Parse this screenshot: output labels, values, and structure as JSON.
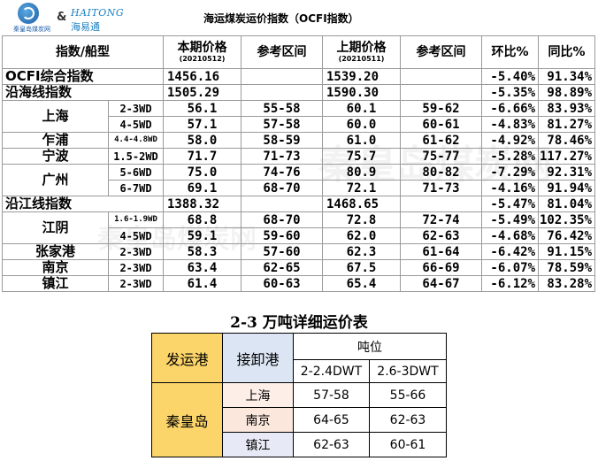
{
  "header": {
    "logo1_caption": "秦皇岛煤炭网",
    "amp": "&",
    "logo2_en": "HAITONG",
    "logo2_cn": "海易通",
    "title": "海运煤炭运价指数（OCFI指数）"
  },
  "main_table": {
    "headers": {
      "type": "指数/船型",
      "cur": "本期价格",
      "cur_date": "(20210512)",
      "ref1": "参考区间",
      "prev": "上期价格",
      "prev_date": "(20210511)",
      "ref2": "参考区间",
      "mom": "环比%",
      "yoy": "同比%"
    },
    "ocfi": {
      "label": "OCFI综合指数",
      "cur": "1456.16",
      "prev": "1539.20",
      "mom": "-5.40%",
      "yoy": "91.34%"
    },
    "coastal": {
      "label": "沿海线指数",
      "cur": "1505.29",
      "prev": "1590.30",
      "mom": "-5.35%",
      "yoy": "98.89%"
    },
    "shanghai": {
      "port": "上海",
      "r1": {
        "ship": "2-3WD",
        "cur": "56.1",
        "ref1": "55-58",
        "prev": "60.1",
        "ref2": "59-62",
        "mom": "-6.66%",
        "yoy": "83.93%"
      },
      "r2": {
        "ship": "4-5WD",
        "cur": "57.1",
        "ref1": "57-58",
        "prev": "60.0",
        "ref2": "60-61",
        "mom": "-4.83%",
        "yoy": "81.27%"
      }
    },
    "zhapu": {
      "port": "乍浦",
      "ship": "4.4-4.8WD",
      "cur": "58.0",
      "ref1": "58-59",
      "prev": "61.0",
      "ref2": "61-62",
      "mom": "-4.92%",
      "yoy": "78.46%"
    },
    "ningbo": {
      "port": "宁波",
      "ship": "1.5-2WD",
      "cur": "71.7",
      "ref1": "71-73",
      "prev": "75.7",
      "ref2": "75-77",
      "mom": "-5.28%",
      "yoy": "117.27%"
    },
    "guangzhou": {
      "port": "广州",
      "r1": {
        "ship": "5-6WD",
        "cur": "75.0",
        "ref1": "74-76",
        "prev": "80.9",
        "ref2": "80-82",
        "mom": "-7.29%",
        "yoy": "92.31%"
      },
      "r2": {
        "ship": "6-7WD",
        "cur": "69.1",
        "ref1": "68-70",
        "prev": "72.1",
        "ref2": "71-73",
        "mom": "-4.16%",
        "yoy": "91.94%"
      }
    },
    "river": {
      "label": "沿江线指数",
      "cur": "1388.32",
      "prev": "1468.65",
      "mom": "-5.47%",
      "yoy": "81.04%"
    },
    "jiangyin": {
      "port": "江阴",
      "r1": {
        "ship": "1.6-1.9WD",
        "cur": "68.8",
        "ref1": "68-70",
        "prev": "72.8",
        "ref2": "72-74",
        "mom": "-5.49%",
        "yoy": "102.35%"
      },
      "r2": {
        "ship": "4-5WD",
        "cur": "59.1",
        "ref1": "59-60",
        "prev": "62.0",
        "ref2": "62-63",
        "mom": "-4.68%",
        "yoy": "76.42%"
      }
    },
    "zhangjiagang": {
      "port": "张家港",
      "ship": "2-3WD",
      "cur": "58.3",
      "ref1": "57-60",
      "prev": "62.3",
      "ref2": "61-64",
      "mom": "-6.42%",
      "yoy": "91.15%"
    },
    "nanjing": {
      "port": "南京",
      "ship": "2-3WD",
      "cur": "63.4",
      "ref1": "62-65",
      "prev": "67.5",
      "ref2": "66-69",
      "mom": "-6.07%",
      "yoy": "78.59%"
    },
    "zhenjiang": {
      "port": "镇江",
      "ship": "2-3WD",
      "cur": "61.4",
      "ref1": "60-63",
      "prev": "65.4",
      "ref2": "64-67",
      "mom": "-6.12%",
      "yoy": "83.28%"
    }
  },
  "detail": {
    "title": "2-3 万吨详细运价表",
    "h_origin": "发运港",
    "h_dest": "接卸港",
    "h_tonnage": "吨位",
    "h_c1": "2-2.4DWT",
    "h_c2": "2.6-3DWT",
    "origin": "秦皇岛",
    "rows": [
      {
        "dest": "上海",
        "c1": "57-58",
        "c2": "55-66"
      },
      {
        "dest": "南京",
        "c1": "64-65",
        "c2": "62-63"
      },
      {
        "dest": "镇江",
        "c1": "62-63",
        "c2": "60-61"
      }
    ]
  },
  "colors": {
    "gold": "#fcd56a",
    "blue_header": "#dce5f3",
    "logo_blue": "#1d5ea8"
  }
}
